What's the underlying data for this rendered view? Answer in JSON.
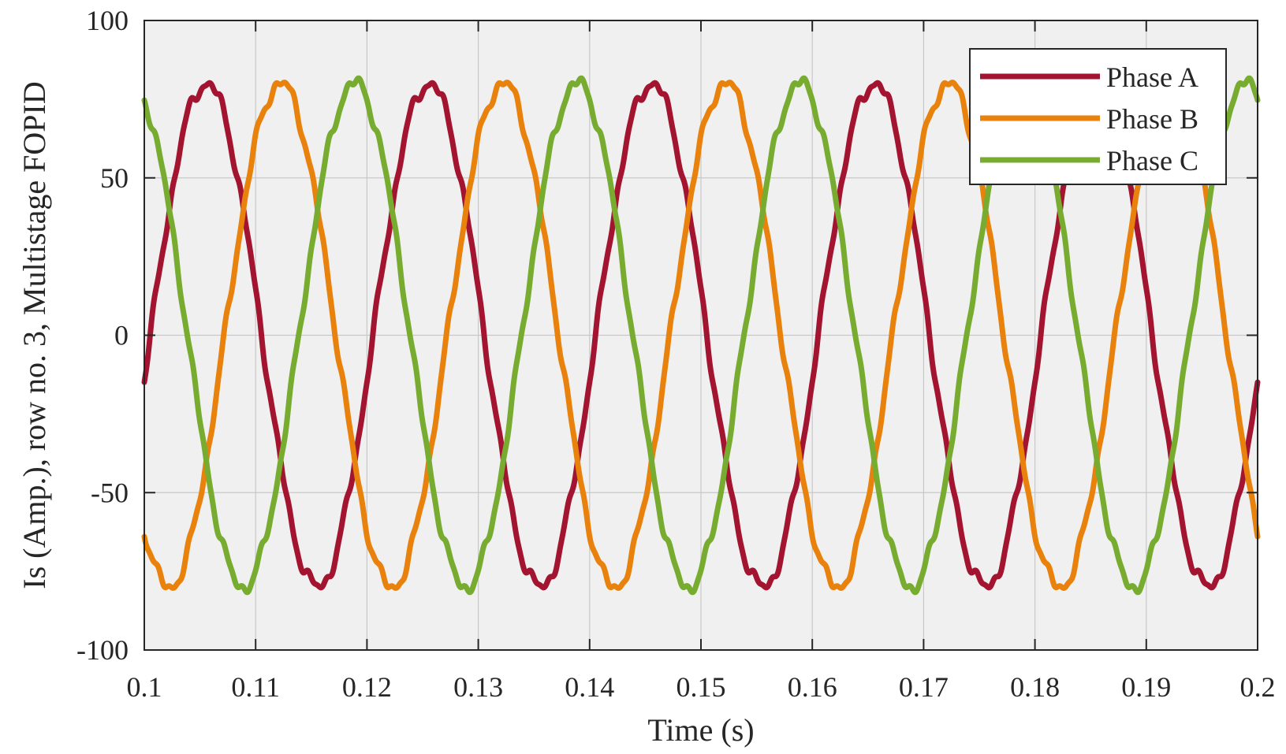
{
  "chart_data": {
    "type": "line",
    "xlabel": "Time (s)",
    "ylabel": "Is (Amp.), row no. 3, Multistage FOPID",
    "xlim": [
      0.1,
      0.2
    ],
    "ylim": [
      -100,
      100
    ],
    "x_ticks": [
      "0.1",
      "0.11",
      "0.12",
      "0.13",
      "0.14",
      "0.15",
      "0.16",
      "0.17",
      "0.18",
      "0.19",
      "0.2"
    ],
    "y_ticks": [
      "100",
      "50",
      "0",
      "-50",
      "-100"
    ],
    "grid": true,
    "legend_position": "top-right",
    "frequency_hz": 50,
    "amplitude": 80,
    "series": [
      {
        "name": "Phase A",
        "color": "#A2142F",
        "phase_deg_at_x0": -10,
        "points": [
          [
            0.1,
            -14
          ],
          [
            0.1056,
            80
          ],
          [
            0.1156,
            -78
          ],
          [
            0.1256,
            81
          ],
          [
            0.1356,
            -80
          ],
          [
            0.1456,
            80
          ],
          [
            0.1556,
            -80
          ],
          [
            0.1656,
            81
          ],
          [
            0.1756,
            -79
          ],
          [
            0.1856,
            80
          ],
          [
            0.1956,
            -80
          ],
          [
            0.2,
            -24
          ]
        ]
      },
      {
        "name": "Phase B",
        "color": "#E8820C",
        "phase_deg_at_x0": -130,
        "points": [
          [
            0.1,
            -60
          ],
          [
            0.1123,
            80
          ],
          [
            0.1223,
            -82
          ],
          [
            0.1323,
            81
          ],
          [
            0.1423,
            -81
          ],
          [
            0.1523,
            81
          ],
          [
            0.1623,
            -82
          ],
          [
            0.1723,
            81
          ],
          [
            0.1823,
            -82
          ],
          [
            0.1923,
            80
          ],
          [
            0.2,
            -55
          ]
        ]
      },
      {
        "name": "Phase C",
        "color": "#77AC30",
        "phase_deg_at_x0": 110,
        "points": [
          [
            0.1,
            74
          ],
          [
            0.1089,
            -79
          ],
          [
            0.1189,
            80
          ],
          [
            0.1289,
            -81
          ],
          [
            0.1389,
            81
          ],
          [
            0.1489,
            -81
          ],
          [
            0.1589,
            80
          ],
          [
            0.1689,
            -80
          ],
          [
            0.1789,
            80
          ],
          [
            0.1889,
            -80
          ],
          [
            0.1989,
            81
          ],
          [
            0.2,
            78
          ]
        ]
      }
    ]
  }
}
